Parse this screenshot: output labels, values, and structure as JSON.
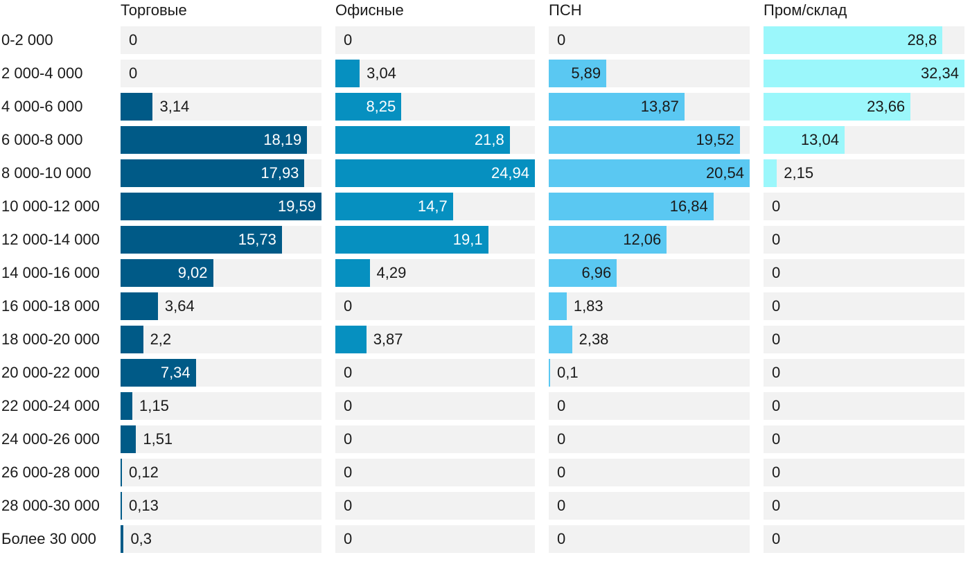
{
  "chart_data": {
    "type": "bar",
    "orientation": "horizontal",
    "layout": "small-multiples",
    "categories": [
      "0-2 000",
      "2 000-4 000",
      "4 000-6 000",
      "6 000-8 000",
      "8 000-10 000",
      "10 000-12 000",
      "12 000-14 000",
      "14 000-16 000",
      "16 000-18 000",
      "18 000-20 000",
      "20 000-22 000",
      "22 000-24 000",
      "24 000-26 000",
      "26 000-28 000",
      "28 000-30 000",
      "Более 30 000"
    ],
    "series": [
      {
        "name": "Торговые",
        "color": "#005a87",
        "label_color_inside": "#ffffff",
        "labels": [
          "0",
          "0",
          "3,14",
          "18,19",
          "17,93",
          "19,59",
          "15,73",
          "9,02",
          "3,64",
          "2,2",
          "7,34",
          "1,15",
          "1,51",
          "0,12",
          "0,13",
          "0,3"
        ],
        "values": [
          0,
          0,
          3.14,
          18.19,
          17.93,
          19.59,
          15.73,
          9.02,
          3.64,
          2.2,
          7.34,
          1.15,
          1.51,
          0.12,
          0.13,
          0.3
        ]
      },
      {
        "name": "Офисные",
        "color": "#0690c0",
        "label_color_inside": "#ffffff",
        "labels": [
          "0",
          "3,04",
          "8,25",
          "21,8",
          "24,94",
          "14,7",
          "19,1",
          "4,29",
          "0",
          "3,87",
          "0",
          "0",
          "0",
          "0",
          "0",
          "0"
        ],
        "values": [
          0,
          3.04,
          8.25,
          21.8,
          24.94,
          14.7,
          19.1,
          4.29,
          0,
          3.87,
          0,
          0,
          0,
          0,
          0,
          0
        ]
      },
      {
        "name": "ПСН",
        "color": "#5ac8f2",
        "label_color_inside": "#1a1a1a",
        "labels": [
          "0",
          "5,89",
          "13,87",
          "19,52",
          "20,54",
          "16,84",
          "12,06",
          "6,96",
          "1,83",
          "2,38",
          "0,1",
          "0",
          "0",
          "0",
          "0",
          "0"
        ],
        "values": [
          0,
          5.89,
          13.87,
          19.52,
          20.54,
          16.84,
          12.06,
          6.96,
          1.83,
          2.38,
          0.1,
          0,
          0,
          0,
          0,
          0
        ]
      },
      {
        "name": "Пром/склад",
        "color": "#9bf7fb",
        "label_color_inside": "#1a1a1a",
        "labels": [
          "28,8",
          "32,34",
          "23,66",
          "13,04",
          "2,15",
          "0",
          "0",
          "0",
          "0",
          "0",
          "0",
          "0",
          "0",
          "0",
          "0",
          "0"
        ],
        "values": [
          28.8,
          32.34,
          23.66,
          13.04,
          2.15,
          0,
          0,
          0,
          0,
          0,
          0,
          0,
          0,
          0,
          0,
          0
        ]
      }
    ],
    "legend": "none",
    "grid": false
  }
}
